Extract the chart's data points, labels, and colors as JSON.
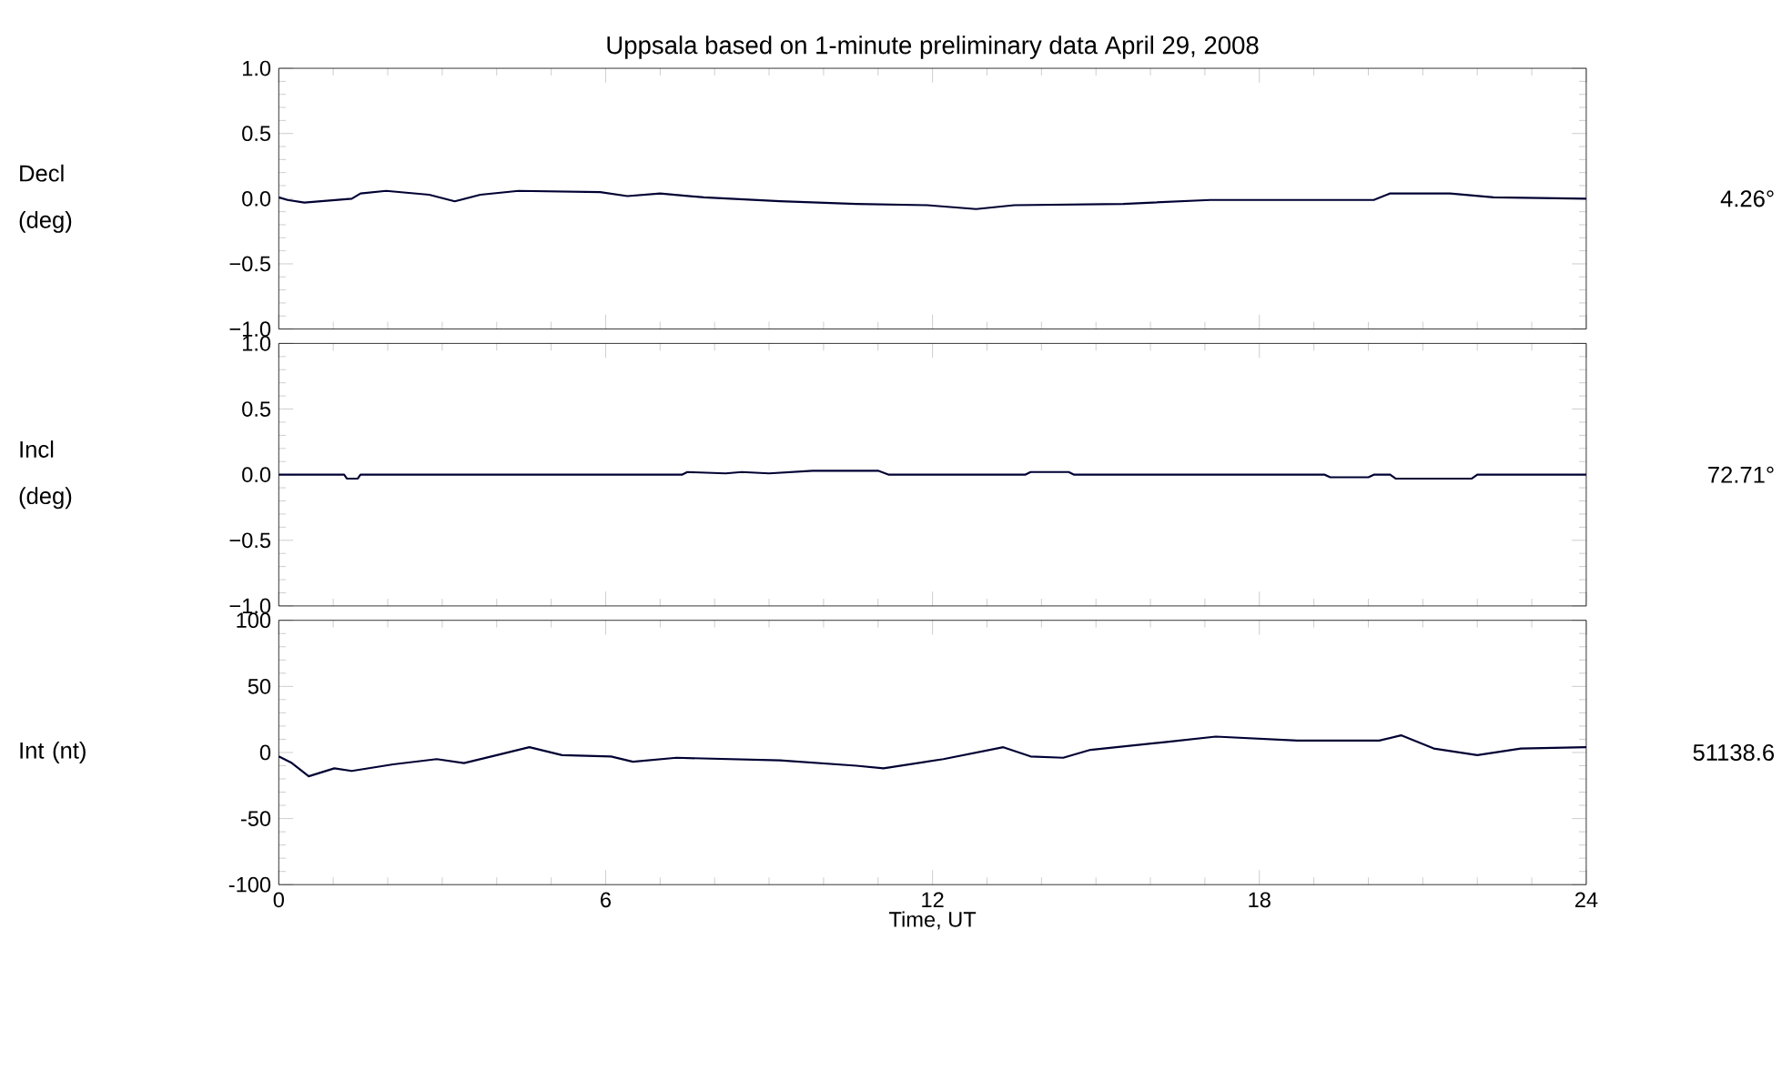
{
  "chart_data": [
    {
      "type": "line",
      "title": "Uppsala based on 1-minute preliminary data April 29, 2008",
      "ylabel": "Decl (deg)",
      "annotations": [
        "4.26°"
      ],
      "xlim": [
        0,
        24
      ],
      "xticks": [
        0,
        6,
        12,
        18,
        24
      ],
      "ylim": [
        -1,
        1
      ],
      "yticks": [
        {
          "value": -1,
          "label": "−1.0"
        },
        {
          "value": -0.5,
          "label": "−0.5"
        },
        {
          "value": 0,
          "label": "0.0"
        },
        {
          "value": 0.5,
          "label": "0.5"
        },
        {
          "value": 1,
          "label": "1.0"
        }
      ],
      "tick_labels": "y",
      "series": [
        {
          "color": "#000033",
          "x": [
            0,
            0.16,
            0.47,
            1.34,
            1.5,
            1.97,
            2.76,
            3.23,
            3.7,
            4.4,
            5.9,
            6.4,
            7.0,
            7.8,
            9.2,
            10.6,
            11.9,
            12.8,
            13.5,
            15.5,
            17.1,
            20.1,
            20.4,
            21.5,
            22.3,
            24
          ],
          "values": [
            0.01,
            -0.01,
            -0.03,
            0.0,
            0.04,
            0.06,
            0.03,
            -0.02,
            0.03,
            0.06,
            0.05,
            0.02,
            0.04,
            0.01,
            -0.02,
            -0.04,
            -0.05,
            -0.08,
            -0.05,
            -0.04,
            -0.01,
            -0.01,
            0.04,
            0.04,
            0.01,
            0.0
          ]
        }
      ]
    },
    {
      "type": "line",
      "ylabel": "Incl (deg)",
      "annotations": [
        "72.71°"
      ],
      "xlim": [
        0,
        24
      ],
      "xticks": [
        0,
        6,
        12,
        18,
        24
      ],
      "ylim": [
        -1,
        1
      ],
      "yticks": [
        {
          "value": -1,
          "label": "−1.0"
        },
        {
          "value": -0.5,
          "label": "−0.5"
        },
        {
          "value": 0,
          "label": "0.0"
        },
        {
          "value": 0.5,
          "label": "0.5"
        },
        {
          "value": 1,
          "label": "1.0"
        }
      ],
      "tick_labels": "y",
      "series": [
        {
          "color": "#000033",
          "x": [
            0,
            1.2,
            1.25,
            1.45,
            1.5,
            7.4,
            7.5,
            8.2,
            8.5,
            9.0,
            9.8,
            11.0,
            11.2,
            13.7,
            13.8,
            14.5,
            14.6,
            19.2,
            19.3,
            20.0,
            20.1,
            20.4,
            20.5,
            21.9,
            22.0,
            24
          ],
          "values": [
            0,
            0,
            -0.03,
            -0.03,
            0,
            0,
            0.02,
            0.01,
            0.02,
            0.01,
            0.03,
            0.03,
            0,
            0,
            0.02,
            0.02,
            0,
            0,
            -0.02,
            -0.02,
            0,
            0,
            -0.03,
            -0.03,
            0,
            0
          ]
        }
      ]
    },
    {
      "type": "line",
      "ylabel": "Int (nt)",
      "xlabel": "Time, UT",
      "annotations": [
        "51138.6"
      ],
      "xlim": [
        0,
        24
      ],
      "xticks": [
        0,
        6,
        12,
        18,
        24
      ],
      "ylim": [
        -100,
        100
      ],
      "yticks": [
        -100,
        -50,
        0,
        50,
        100
      ],
      "series": [
        {
          "color": "#000033",
          "x": [
            0,
            0.24,
            0.55,
            1.02,
            1.34,
            2.1,
            2.9,
            3.4,
            3.9,
            4.6,
            5.2,
            6.1,
            6.5,
            7.3,
            9.2,
            10.6,
            11.1,
            12.2,
            13.3,
            13.8,
            14.4,
            14.9,
            16.3,
            17.2,
            18.7,
            20.2,
            20.6,
            21.2,
            22.0,
            22.8,
            24
          ],
          "values": [
            -3,
            -8,
            -18,
            -12,
            -14,
            -9,
            -5,
            -8,
            -3,
            4,
            -2,
            -3,
            -7,
            -4,
            -6,
            -10,
            -12,
            -5,
            4,
            -3,
            -4,
            2,
            8,
            12,
            9,
            9,
            13,
            3,
            -2,
            3,
            4
          ]
        }
      ]
    }
  ]
}
